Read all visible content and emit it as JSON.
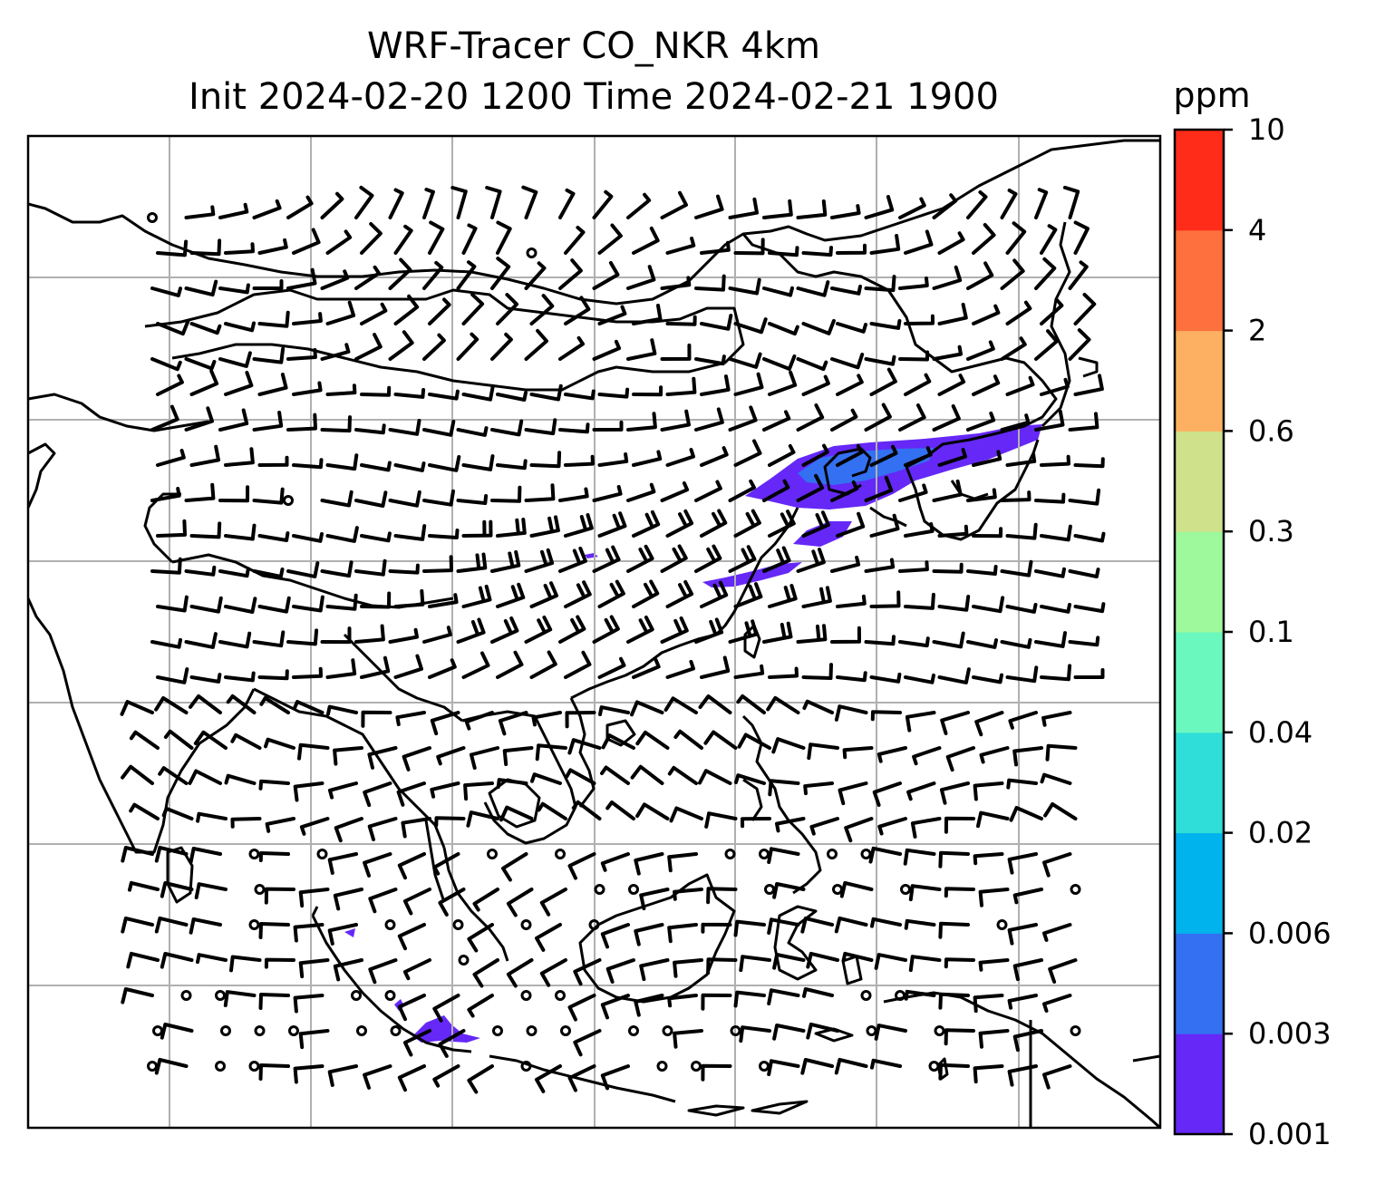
{
  "title_line1": "WRF-Tracer CO_NKR 4km",
  "title_line2": "Init 2024-02-20 1200 Time 2024-02-21 1900",
  "colorbar": {
    "unit": "ppm",
    "levels": [
      "0.001",
      "0.003",
      "0.006",
      "0.02",
      "0.04",
      "0.1",
      "0.3",
      "0.6",
      "2",
      "4",
      "10"
    ],
    "colors": [
      "#6528f7",
      "#3370f2",
      "#00b3ec",
      "#2fded8",
      "#6bf8bf",
      "#9df99b",
      "#cfe28b",
      "#fdb061",
      "#fe703d",
      "#ff2c1a"
    ]
  },
  "map": {
    "gridlines": true,
    "coastline_color": "#000000",
    "grid_color": "#b0b0b0",
    "tracer_color": "#6528f7"
  }
}
